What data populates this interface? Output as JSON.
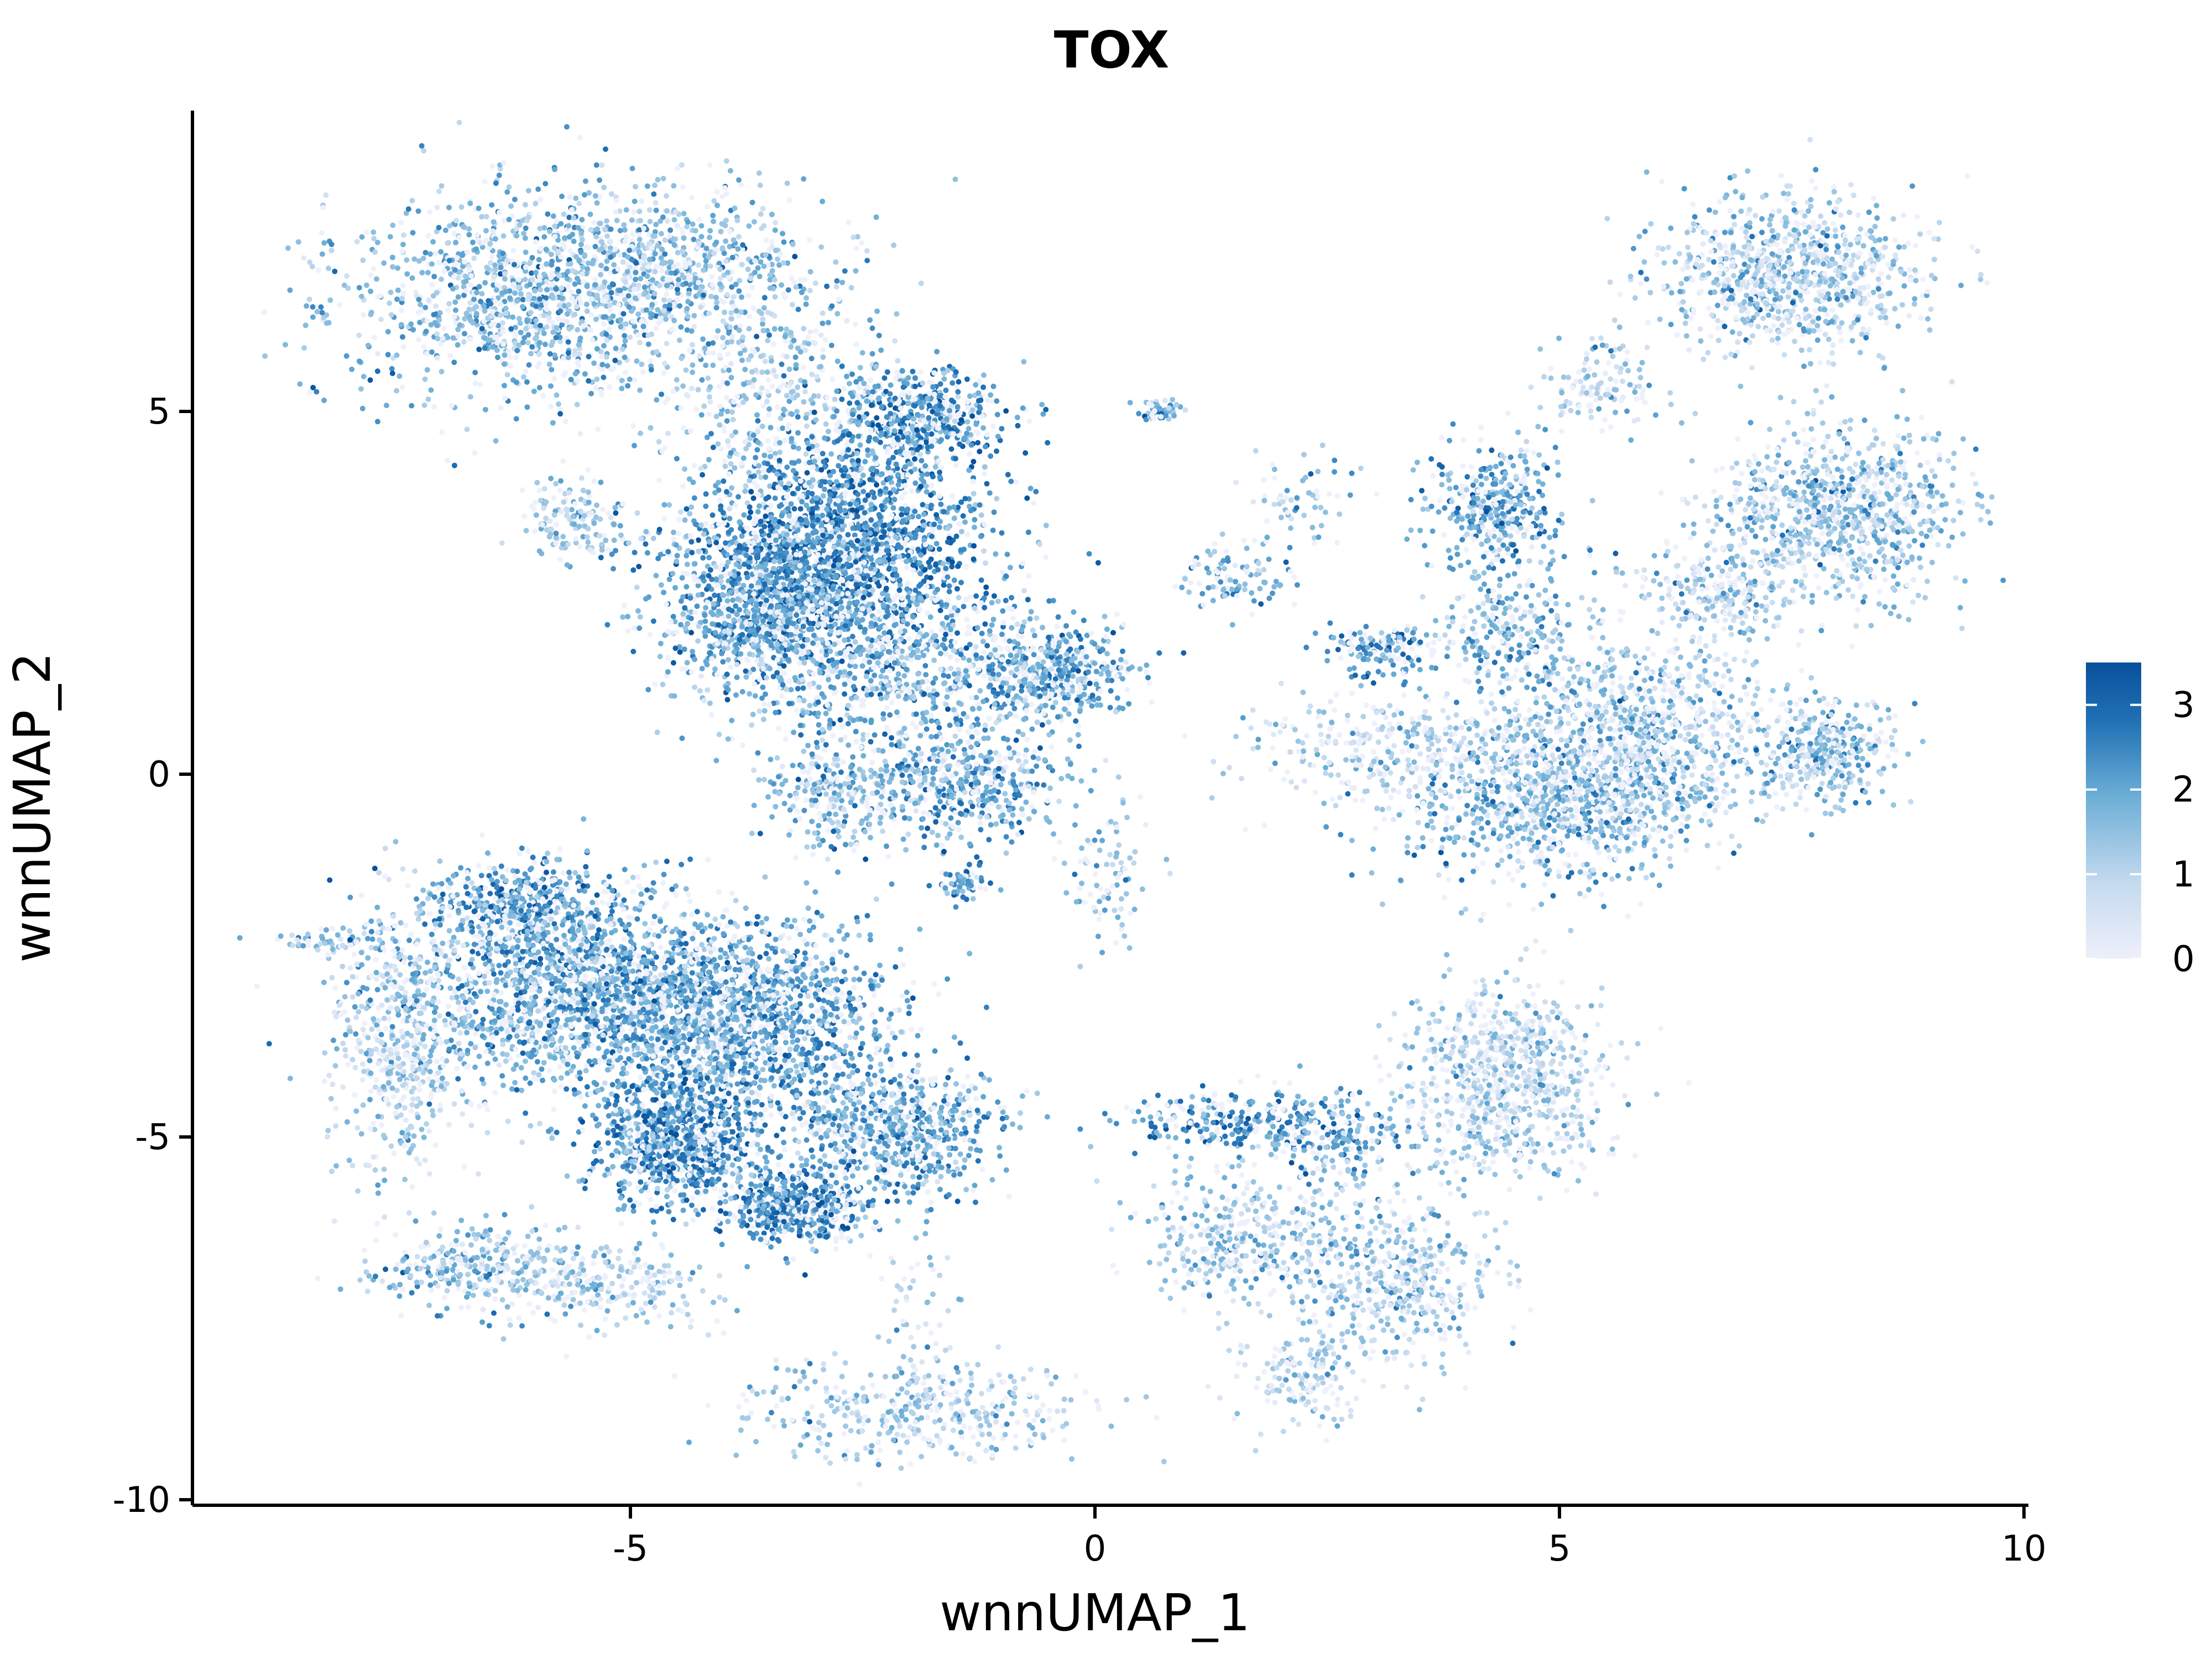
{
  "chart_data": {
    "type": "scatter",
    "title": "TOX",
    "xlabel": "wnnUMAP_1",
    "ylabel": "wnnUMAP_2",
    "xlim": [
      -9.6,
      10.0
    ],
    "ylim": [
      -10.1,
      9.0
    ],
    "x_ticks": [
      {
        "value": -5,
        "label": "-5"
      },
      {
        "value": 0,
        "label": "0"
      },
      {
        "value": 5,
        "label": "5"
      },
      {
        "value": 10,
        "label": "10"
      }
    ],
    "y_ticks": [
      {
        "value": 5,
        "label": "5"
      },
      {
        "value": 0,
        "label": "0"
      },
      {
        "value": -5,
        "label": "-5"
      },
      {
        "value": -10,
        "label": "-10"
      }
    ],
    "grid": false,
    "color_scale": {
      "name": "",
      "min": 0,
      "max": 3.5,
      "low_color": "#eef0fb",
      "high_color": "#08519c",
      "ticks": [
        {
          "value": 0,
          "label": "0"
        },
        {
          "value": 1,
          "label": "1"
        },
        {
          "value": 2,
          "label": "2"
        },
        {
          "value": 3,
          "label": "3"
        }
      ],
      "position": "right"
    },
    "clusters": [
      {
        "x": -6.0,
        "y": 6.6,
        "sx": 1.1,
        "sy": 0.75,
        "n": 1300,
        "expr": 1.7
      },
      {
        "x": -4.4,
        "y": 7.0,
        "sx": 0.8,
        "sy": 0.55,
        "n": 500,
        "expr": 1.5
      },
      {
        "x": -3.4,
        "y": 5.2,
        "sx": 0.6,
        "sy": 0.7,
        "n": 350,
        "expr": 1.4
      },
      {
        "x": -1.9,
        "y": 4.9,
        "sx": 0.45,
        "sy": 0.35,
        "n": 500,
        "expr": 2.3
      },
      {
        "x": -2.7,
        "y": 3.1,
        "sx": 0.8,
        "sy": 0.8,
        "n": 2000,
        "expr": 2.4
      },
      {
        "x": -3.6,
        "y": 2.3,
        "sx": 0.55,
        "sy": 0.55,
        "n": 700,
        "expr": 2.0
      },
      {
        "x": -5.6,
        "y": 3.5,
        "sx": 0.35,
        "sy": 0.3,
        "n": 150,
        "expr": 1.4
      },
      {
        "x": -2.2,
        "y": 1.3,
        "sx": 0.9,
        "sy": 0.6,
        "n": 650,
        "expr": 1.8
      },
      {
        "x": -0.5,
        "y": 1.4,
        "sx": 0.45,
        "sy": 0.35,
        "n": 450,
        "expr": 2.0
      },
      {
        "x": -1.4,
        "y": -0.2,
        "sx": 0.55,
        "sy": 0.4,
        "n": 450,
        "expr": 1.9
      },
      {
        "x": -2.8,
        "y": -0.3,
        "sx": 0.35,
        "sy": 0.35,
        "n": 250,
        "expr": 1.7
      },
      {
        "x": -1.4,
        "y": -1.5,
        "sx": 0.15,
        "sy": 0.15,
        "n": 50,
        "expr": 2.0
      },
      {
        "x": 0.7,
        "y": 5.0,
        "sx": 0.12,
        "sy": 0.08,
        "n": 50,
        "expr": 1.9
      },
      {
        "x": 1.5,
        "y": 2.7,
        "sx": 0.3,
        "sy": 0.25,
        "n": 100,
        "expr": 1.7
      },
      {
        "x": 2.2,
        "y": 3.8,
        "sx": 0.3,
        "sy": 0.35,
        "n": 60,
        "expr": 1.5
      },
      {
        "x": 3.1,
        "y": 1.7,
        "sx": 0.3,
        "sy": 0.2,
        "n": 150,
        "expr": 2.2
      },
      {
        "x": 0.2,
        "y": -1.5,
        "sx": 0.25,
        "sy": 0.45,
        "n": 80,
        "expr": 1.6
      },
      {
        "x": 7.5,
        "y": 6.9,
        "sx": 0.7,
        "sy": 0.55,
        "n": 900,
        "expr": 1.3
      },
      {
        "x": 5.4,
        "y": 5.3,
        "sx": 0.3,
        "sy": 0.3,
        "n": 120,
        "expr": 1.1
      },
      {
        "x": 4.3,
        "y": 3.7,
        "sx": 0.35,
        "sy": 0.45,
        "n": 350,
        "expr": 2.0
      },
      {
        "x": 4.5,
        "y": 2.0,
        "sx": 0.4,
        "sy": 0.5,
        "n": 250,
        "expr": 1.7
      },
      {
        "x": 8.0,
        "y": 3.6,
        "sx": 0.65,
        "sy": 0.6,
        "n": 900,
        "expr": 1.4
      },
      {
        "x": 6.7,
        "y": 2.5,
        "sx": 0.45,
        "sy": 0.35,
        "n": 250,
        "expr": 1.2
      },
      {
        "x": 5.0,
        "y": -0.4,
        "sx": 0.9,
        "sy": 0.55,
        "n": 900,
        "expr": 1.6
      },
      {
        "x": 5.9,
        "y": 0.6,
        "sx": 0.7,
        "sy": 0.65,
        "n": 800,
        "expr": 1.3
      },
      {
        "x": 7.9,
        "y": 0.3,
        "sx": 0.35,
        "sy": 0.4,
        "n": 350,
        "expr": 1.5
      },
      {
        "x": 3.3,
        "y": 0.3,
        "sx": 0.8,
        "sy": 0.4,
        "n": 350,
        "expr": 1.0
      },
      {
        "x": -6.1,
        "y": -1.8,
        "sx": 0.55,
        "sy": 0.3,
        "n": 450,
        "expr": 2.2
      },
      {
        "x": -5.6,
        "y": -3.0,
        "sx": 1.0,
        "sy": 0.7,
        "n": 1500,
        "expr": 1.9
      },
      {
        "x": -3.9,
        "y": -3.4,
        "sx": 0.9,
        "sy": 0.7,
        "n": 1600,
        "expr": 2.0
      },
      {
        "x": -4.5,
        "y": -5.1,
        "sx": 0.45,
        "sy": 0.45,
        "n": 900,
        "expr": 2.3
      },
      {
        "x": -3.2,
        "y": -6.0,
        "sx": 0.35,
        "sy": 0.25,
        "n": 500,
        "expr": 2.4
      },
      {
        "x": -2.1,
        "y": -4.9,
        "sx": 0.55,
        "sy": 0.45,
        "n": 700,
        "expr": 2.0
      },
      {
        "x": -7.5,
        "y": -3.6,
        "sx": 0.35,
        "sy": 1.0,
        "n": 500,
        "expr": 1.1
      },
      {
        "x": -6.6,
        "y": -6.8,
        "sx": 0.55,
        "sy": 0.3,
        "n": 350,
        "expr": 1.5
      },
      {
        "x": -5.1,
        "y": -7.1,
        "sx": 0.5,
        "sy": 0.3,
        "n": 200,
        "expr": 1.2
      },
      {
        "x": -8.3,
        "y": -2.3,
        "sx": 0.25,
        "sy": 0.07,
        "n": 50,
        "expr": 1.5
      },
      {
        "x": -2.0,
        "y": -8.8,
        "sx": 0.9,
        "sy": 0.35,
        "n": 400,
        "expr": 1.2
      },
      {
        "x": -1.9,
        "y": -7.5,
        "sx": 0.25,
        "sy": 0.6,
        "n": 60,
        "expr": 1.1
      },
      {
        "x": 1.5,
        "y": -4.8,
        "sx": 0.6,
        "sy": 0.2,
        "n": 250,
        "expr": 2.2
      },
      {
        "x": 2.6,
        "y": -5.0,
        "sx": 0.4,
        "sy": 0.3,
        "n": 200,
        "expr": 1.9
      },
      {
        "x": 4.4,
        "y": -4.2,
        "sx": 0.55,
        "sy": 0.7,
        "n": 800,
        "expr": 1.0
      },
      {
        "x": 3.2,
        "y": -7.0,
        "sx": 0.55,
        "sy": 0.6,
        "n": 500,
        "expr": 1.2
      },
      {
        "x": 1.5,
        "y": -6.4,
        "sx": 0.55,
        "sy": 0.5,
        "n": 350,
        "expr": 1.3
      },
      {
        "x": 2.2,
        "y": -8.3,
        "sx": 0.35,
        "sy": 0.35,
        "n": 150,
        "expr": 0.9
      }
    ]
  }
}
